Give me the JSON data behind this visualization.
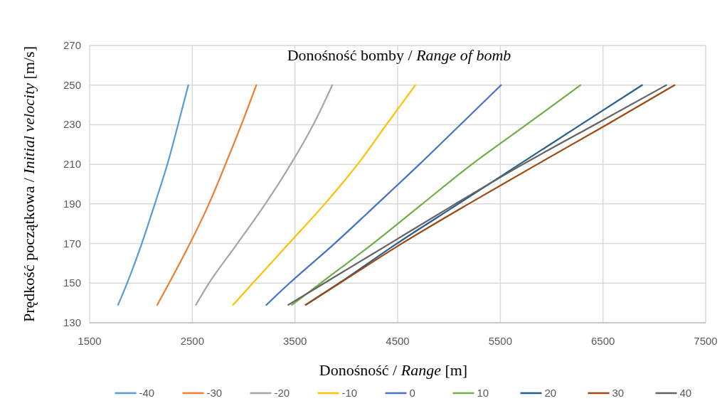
{
  "chart_data": {
    "type": "line",
    "title": "Donośność bomby / Range of bomb",
    "xlabel": "Donośność / Range [m]",
    "ylabel": "Prędkość początkowa / Initial velocity [m/s]",
    "xlim": [
      1500,
      7500
    ],
    "xticks": [
      1500,
      2500,
      3500,
      4500,
      5500,
      6500,
      7500
    ],
    "ylim": [
      130,
      270
    ],
    "yticks": [
      130,
      150,
      170,
      190,
      210,
      230,
      250,
      270
    ],
    "grid": true,
    "legend": "bottom",
    "marker": "none",
    "line_style": "solid",
    "series": [
      {
        "name": "-40",
        "color": "#5b9bd5",
        "x": [
          1777,
          1865,
          2008,
          2135,
          2257,
          2361,
          2461
        ],
        "values": [
          139,
          150,
          170,
          190,
          210,
          230,
          250
        ]
      },
      {
        "name": "-30",
        "color": "#ed7d31",
        "x": [
          2158,
          2274,
          2477,
          2662,
          2823,
          2978,
          3124
        ],
        "values": [
          139,
          150,
          170,
          190,
          210,
          230,
          250
        ]
      },
      {
        "name": "-20",
        "color": "#a5a5a5",
        "x": [
          2535,
          2662,
          2939,
          3211,
          3458,
          3678,
          3863
        ],
        "values": [
          139,
          150,
          170,
          190,
          210,
          230,
          250
        ]
      },
      {
        "name": "-10",
        "color": "#ffc000",
        "x": [
          2897,
          3089,
          3440,
          3790,
          4110,
          4390,
          4673
        ],
        "values": [
          139,
          150,
          170,
          190,
          210,
          230,
          250
        ]
      },
      {
        "name": "0",
        "color": "#4472c4",
        "x": [
          3221,
          3447,
          3886,
          4301,
          4712,
          5110,
          5507
        ],
        "values": [
          139,
          150,
          170,
          190,
          210,
          230,
          250
        ]
      },
      {
        "name": "10",
        "color": "#70ad47",
        "x": [
          3470,
          3750,
          4260,
          4740,
          5223,
          5754,
          6281
        ],
        "values": [
          139,
          150,
          170,
          190,
          210,
          230,
          250
        ]
      },
      {
        "name": "20",
        "color": "#255e91",
        "x": [
          3604,
          3930,
          4493,
          5090,
          5686,
          6283,
          6881
        ],
        "values": [
          139,
          150,
          170,
          190,
          210,
          230,
          250
        ]
      },
      {
        "name": "30",
        "color": "#9e480e",
        "x": [
          3604,
          3936,
          4540,
          5190,
          5860,
          6535,
          7198
        ],
        "values": [
          139,
          150,
          170,
          190,
          210,
          230,
          250
        ]
      },
      {
        "name": "40",
        "color": "#636363",
        "x": [
          3435,
          3786,
          4424,
          5062,
          5720,
          6418,
          7117
        ],
        "values": [
          139,
          150,
          170,
          190,
          210,
          230,
          250
        ]
      }
    ]
  }
}
